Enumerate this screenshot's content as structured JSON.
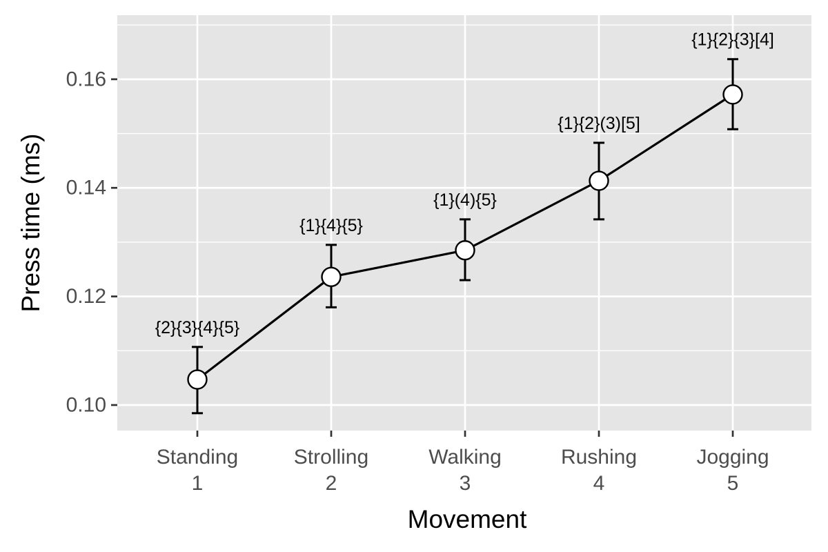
{
  "chart_data": {
    "type": "line",
    "xlabel": "Movement",
    "ylabel": "Press time (ms)",
    "categories": [
      {
        "name": "Standing",
        "code": "1"
      },
      {
        "name": "Strolling",
        "code": "2"
      },
      {
        "name": "Walking",
        "code": "3"
      },
      {
        "name": "Rushing",
        "code": "4"
      },
      {
        "name": "Jogging",
        "code": "5"
      }
    ],
    "values": [
      0.1047,
      0.1236,
      0.1285,
      0.1413,
      0.1572
    ],
    "error_low": [
      0.0985,
      0.118,
      0.123,
      0.1342,
      0.1508
    ],
    "error_high": [
      0.1107,
      0.1295,
      0.1342,
      0.1483,
      0.1637
    ],
    "annotations": [
      "{2}{3}{4}{5}",
      "{1}{4}{5}",
      "{1}(4){5}",
      "{1}{2}(3)[5]",
      "{1}{2}{3}[4]"
    ],
    "ylim": [
      0.0953,
      0.1718
    ],
    "yticks": [
      0.1,
      0.12,
      0.14,
      0.16
    ],
    "ytick_labels": [
      "0.10",
      "0.12",
      "0.14",
      "0.16"
    ],
    "grid": true,
    "legend": "none",
    "colors": {
      "panel": "#e5e5e5",
      "grid": "#ffffff",
      "line": "#000000",
      "marker_fill": "#ffffff",
      "tick_text": "#4d4d4d"
    }
  }
}
